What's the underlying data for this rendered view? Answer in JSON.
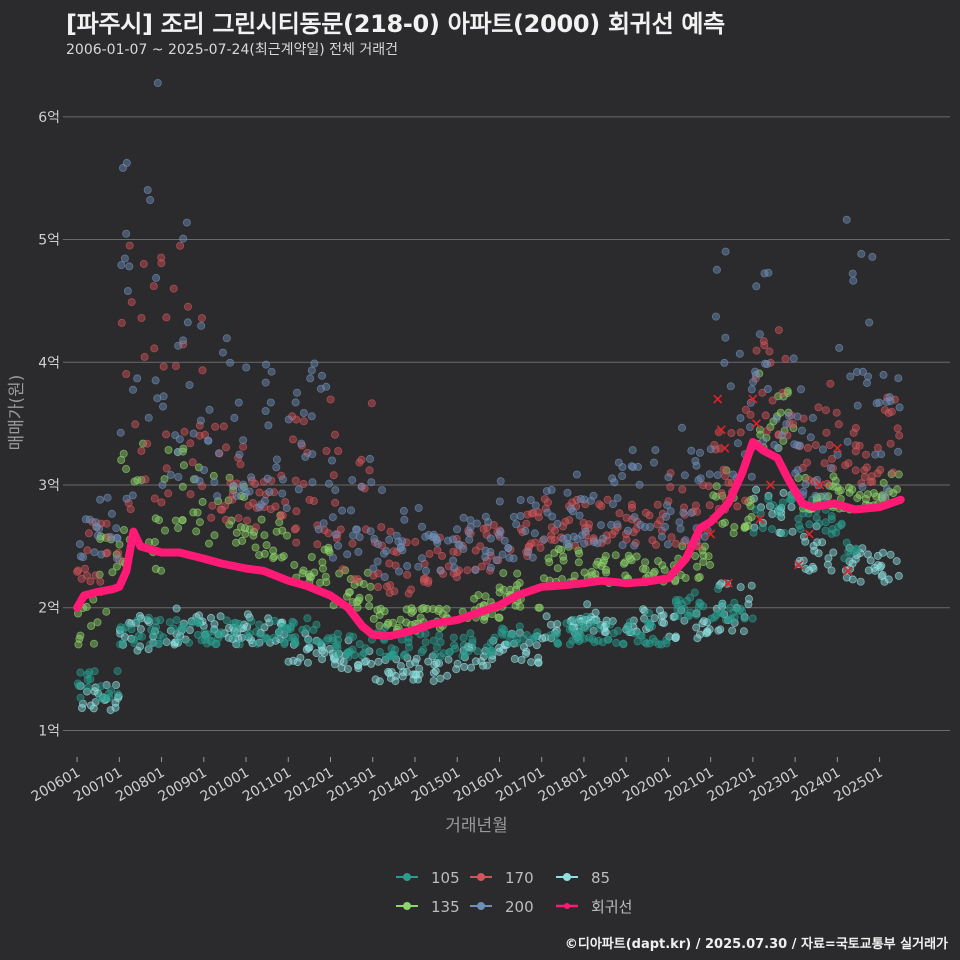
{
  "header": {
    "title": "[파주시] 조리 그린시티동문(218-0) 아파트(2000) 회귀선 예측",
    "subtitle": "2006-01-07 ~ 2025-07-24(최근계약일) 전체 거래건"
  },
  "footer": {
    "credit": "©디아파트(dapt.kr) / 2025.07.30 / 자료=국토교통부 실거래가"
  },
  "colors": {
    "background": "#2b2a2c",
    "grid": "#6a6a6a",
    "s105": "#2a9d8f",
    "s135": "#8fd36a",
    "s170": "#d0555a",
    "s200": "#6f8fb8",
    "s85": "#8ee0e0",
    "regression": "#ff1a75"
  },
  "chart_data": {
    "type": "scatter",
    "xlabel": "거래년월",
    "ylabel": "매매가(원)",
    "x_range": [
      "2005-09",
      "2026-09"
    ],
    "ylim": [
      0.8,
      6.3
    ],
    "y_unit_label": "억",
    "y_ticks": [
      1,
      2,
      3,
      4,
      5,
      6
    ],
    "y_tick_labels": [
      "1억",
      "2억",
      "3억",
      "4억",
      "5억",
      "6억"
    ],
    "x_ticks": [
      "2006-01",
      "2007-01",
      "2008-01",
      "2009-01",
      "2010-01",
      "2011-01",
      "2012-01",
      "2013-01",
      "2014-01",
      "2015-01",
      "2016-01",
      "2017-01",
      "2018-01",
      "2019-01",
      "2020-01",
      "2021-01",
      "2022-01",
      "2023-01",
      "2024-01",
      "2025-01"
    ],
    "x_tick_labels": [
      "200601",
      "200701",
      "200801",
      "200901",
      "201001",
      "201101",
      "201201",
      "201301",
      "201401",
      "201501",
      "201601",
      "201701",
      "201801",
      "201901",
      "202001",
      "202101",
      "202201",
      "202301",
      "202401",
      "202501"
    ],
    "grid": "horizontal",
    "legend_position": "bottom-center",
    "legend": [
      {
        "key": "s105",
        "label": "105",
        "kind": "point"
      },
      {
        "key": "s170",
        "label": "170",
        "kind": "point"
      },
      {
        "key": "s85",
        "label": "85",
        "kind": "point"
      },
      {
        "key": "s135",
        "label": "135",
        "kind": "point"
      },
      {
        "key": "s200",
        "label": "200",
        "kind": "point"
      },
      {
        "key": "regression",
        "label": "회귀선",
        "kind": "line"
      }
    ],
    "series_bands": [
      {
        "name": "85",
        "color_key": "s85",
        "segments": [
          [
            "2006-01",
            1.15,
            1.4
          ],
          [
            "2006-07",
            1.15,
            1.5
          ],
          [
            "2007-01",
            1.65,
            1.95
          ],
          [
            "2008-01",
            1.7,
            2.0
          ],
          [
            "2009-01",
            1.7,
            1.95
          ],
          [
            "2010-01",
            1.7,
            1.95
          ],
          [
            "2011-01",
            1.55,
            1.75
          ],
          [
            "2012-01",
            1.5,
            1.7
          ],
          [
            "2013-01",
            1.4,
            1.6
          ],
          [
            "2014-01",
            1.4,
            1.6
          ],
          [
            "2015-01",
            1.5,
            1.7
          ],
          [
            "2016-01",
            1.55,
            1.8
          ],
          [
            "2017-01",
            1.75,
            1.95
          ],
          [
            "2018-01",
            1.8,
            2.0
          ],
          [
            "2019-01",
            1.8,
            2.0
          ],
          [
            "2020-01",
            1.75,
            2.0
          ],
          [
            "2021-01",
            1.8,
            2.2
          ],
          [
            "2022-01",
            2.6,
            3.0
          ],
          [
            "2023-01",
            2.3,
            2.6
          ],
          [
            "2024-01",
            2.2,
            2.5
          ],
          [
            "2025-01",
            2.2,
            2.5
          ]
        ]
      },
      {
        "name": "105",
        "color_key": "s105",
        "segments": [
          [
            "2006-01",
            1.25,
            1.5
          ],
          [
            "2007-01",
            1.7,
            1.9
          ],
          [
            "2012-01",
            1.6,
            1.8
          ],
          [
            "2016-01",
            1.7,
            1.9
          ],
          [
            "2020-01",
            1.9,
            2.1
          ],
          [
            "2022-01",
            2.6,
            2.9
          ],
          [
            "2024-01",
            2.4,
            2.7
          ]
        ]
      },
      {
        "name": "135",
        "color_key": "s135",
        "segments": [
          [
            "2006-01",
            1.7,
            2.2
          ],
          [
            "2006-07",
            1.9,
            2.6
          ],
          [
            "2007-01",
            2.3,
            3.3
          ],
          [
            "2008-01",
            2.6,
            3.3
          ],
          [
            "2009-01",
            2.5,
            3.0
          ],
          [
            "2010-01",
            2.4,
            2.8
          ],
          [
            "2011-01",
            2.2,
            2.5
          ],
          [
            "2012-01",
            2.0,
            2.3
          ],
          [
            "2013-01",
            1.8,
            2.0
          ],
          [
            "2014-01",
            1.8,
            2.0
          ],
          [
            "2015-01",
            1.9,
            2.1
          ],
          [
            "2016-01",
            2.0,
            2.3
          ],
          [
            "2017-01",
            2.2,
            2.5
          ],
          [
            "2018-01",
            2.2,
            2.45
          ],
          [
            "2019-01",
            2.2,
            2.4
          ],
          [
            "2020-01",
            2.2,
            2.5
          ],
          [
            "2021-01",
            2.6,
            3.2
          ],
          [
            "2022-01",
            3.3,
            3.8
          ],
          [
            "2023-01",
            2.8,
            3.1
          ],
          [
            "2024-01",
            2.8,
            3.0
          ],
          [
            "2025-01",
            2.8,
            3.1
          ]
        ]
      },
      {
        "name": "170",
        "color_key": "s170",
        "segments": [
          [
            "2006-01",
            2.2,
            2.7
          ],
          [
            "2007-01",
            2.8,
            5.2
          ],
          [
            "2008-01",
            2.8,
            4.8
          ],
          [
            "2009-01",
            2.7,
            3.5
          ],
          [
            "2010-01",
            2.6,
            3.1
          ],
          [
            "2011-01",
            2.5,
            3.6
          ],
          [
            "2012-01",
            2.2,
            3.8
          ],
          [
            "2013-01",
            2.1,
            2.7
          ],
          [
            "2014-01",
            2.2,
            2.6
          ],
          [
            "2015-01",
            2.3,
            2.7
          ],
          [
            "2016-01",
            2.4,
            2.8
          ],
          [
            "2017-01",
            2.5,
            2.9
          ],
          [
            "2018-01",
            2.5,
            2.9
          ],
          [
            "2019-01",
            2.5,
            2.9
          ],
          [
            "2020-01",
            2.5,
            3.0
          ],
          [
            "2021-01",
            2.8,
            3.9
          ],
          [
            "2022-01",
            3.4,
            4.3
          ],
          [
            "2023-01",
            3.0,
            3.7
          ],
          [
            "2024-01",
            3.0,
            3.6
          ],
          [
            "2025-01",
            3.1,
            3.8
          ]
        ]
      },
      {
        "name": "200",
        "color_key": "s200",
        "segments": [
          [
            "2006-01",
            2.4,
            3.0
          ],
          [
            "2007-01",
            2.8,
            5.95
          ],
          [
            "2008-01",
            3.0,
            5.0
          ],
          [
            "2009-01",
            2.9,
            4.2
          ],
          [
            "2010-01",
            2.8,
            4.0
          ],
          [
            "2011-01",
            2.6,
            4.0
          ],
          [
            "2012-01",
            2.4,
            3.2
          ],
          [
            "2013-01",
            2.2,
            3.0
          ],
          [
            "2014-01",
            2.3,
            2.7
          ],
          [
            "2015-01",
            2.3,
            2.8
          ],
          [
            "2016-01",
            2.4,
            2.9
          ],
          [
            "2017-01",
            2.5,
            3.0
          ],
          [
            "2018-01",
            2.5,
            3.2
          ],
          [
            "2019-01",
            2.5,
            3.3
          ],
          [
            "2020-01",
            2.5,
            3.3
          ],
          [
            "2021-01",
            3.0,
            4.95
          ],
          [
            "2022-01",
            3.3,
            4.8
          ],
          [
            "2023-01",
            2.9,
            3.8
          ],
          [
            "2024-01",
            2.9,
            4.9
          ],
          [
            "2025-01",
            2.9,
            4.65
          ]
        ]
      }
    ],
    "regression": [
      [
        "2006-01",
        2.0
      ],
      [
        "2006-03",
        2.1
      ],
      [
        "2006-07",
        2.13
      ],
      [
        "2006-11",
        2.15
      ],
      [
        "2007-01",
        2.17
      ],
      [
        "2007-03",
        2.3
      ],
      [
        "2007-05",
        2.62
      ],
      [
        "2007-07",
        2.5
      ],
      [
        "2008-01",
        2.45
      ],
      [
        "2008-06",
        2.45
      ],
      [
        "2009-01",
        2.4
      ],
      [
        "2009-06",
        2.36
      ],
      [
        "2010-01",
        2.32
      ],
      [
        "2010-06",
        2.3
      ],
      [
        "2011-01",
        2.22
      ],
      [
        "2011-06",
        2.18
      ],
      [
        "2012-01",
        2.1
      ],
      [
        "2012-06",
        2.0
      ],
      [
        "2012-10",
        1.85
      ],
      [
        "2013-01",
        1.78
      ],
      [
        "2013-06",
        1.77
      ],
      [
        "2014-01",
        1.82
      ],
      [
        "2014-06",
        1.87
      ],
      [
        "2015-01",
        1.9
      ],
      [
        "2015-06",
        1.95
      ],
      [
        "2016-01",
        2.02
      ],
      [
        "2016-06",
        2.1
      ],
      [
        "2017-01",
        2.17
      ],
      [
        "2017-06",
        2.18
      ],
      [
        "2018-01",
        2.2
      ],
      [
        "2018-06",
        2.22
      ],
      [
        "2019-01",
        2.2
      ],
      [
        "2019-06",
        2.21
      ],
      [
        "2020-01",
        2.24
      ],
      [
        "2020-06",
        2.4
      ],
      [
        "2020-10",
        2.65
      ],
      [
        "2021-01",
        2.7
      ],
      [
        "2021-06",
        2.85
      ],
      [
        "2021-10",
        3.1
      ],
      [
        "2022-01",
        3.35
      ],
      [
        "2022-04",
        3.28
      ],
      [
        "2022-08",
        3.22
      ],
      [
        "2022-11",
        3.05
      ],
      [
        "2023-03",
        2.85
      ],
      [
        "2023-06",
        2.82
      ],
      [
        "2023-12",
        2.85
      ],
      [
        "2024-06",
        2.8
      ],
      [
        "2025-01",
        2.82
      ],
      [
        "2025-06",
        2.87
      ],
      [
        "2025-07",
        2.88
      ]
    ],
    "markers": [
      [
        "2020-12",
        2.65
      ],
      [
        "2021-01",
        2.6
      ],
      [
        "2021-03",
        3.7
      ],
      [
        "2021-04",
        3.45
      ],
      [
        "2021-05",
        3.3
      ],
      [
        "2021-06",
        2.2
      ],
      [
        "2022-01",
        3.7
      ],
      [
        "2022-02",
        3.5
      ],
      [
        "2022-03",
        2.72
      ],
      [
        "2022-06",
        3.0
      ],
      [
        "2023-02",
        2.35
      ],
      [
        "2023-05",
        2.6
      ],
      [
        "2024-01",
        3.3
      ],
      [
        "2024-04",
        2.3
      ],
      [
        "2023-08",
        3.0
      ],
      [
        "2021-02",
        2.72
      ]
    ]
  }
}
